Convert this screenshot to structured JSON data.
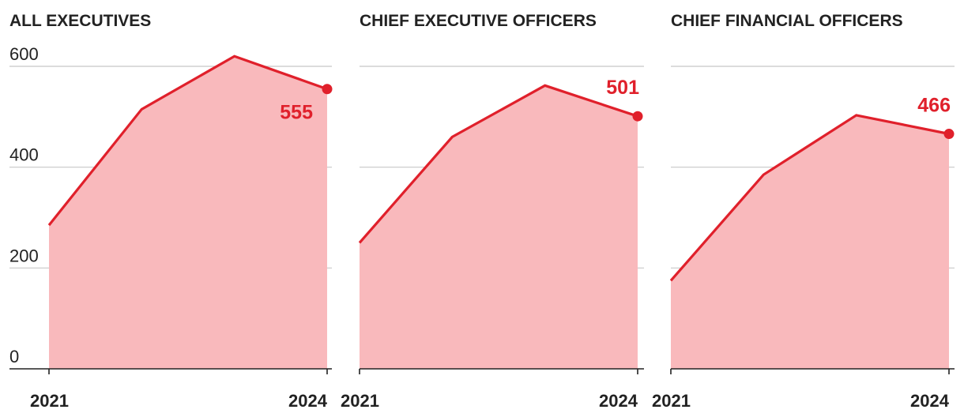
{
  "colors": {
    "line": "#e0202b",
    "area": "#f9b9bc",
    "grid": "#c8c8c8",
    "axis": "#222222",
    "text": "#222222"
  },
  "chart_data": [
    {
      "type": "area",
      "title": "ALL EXECUTIVES",
      "x": [
        2021,
        2022,
        2023,
        2024
      ],
      "values": [
        285,
        515,
        620,
        555
      ],
      "ylim": [
        0,
        600
      ],
      "yticks": [
        "0",
        "200",
        "400",
        "600"
      ],
      "xticks": [
        "2021",
        "2024"
      ],
      "end_label": "555",
      "grid": true
    },
    {
      "type": "area",
      "title": "CHIEF EXECUTIVE OFFICERS",
      "x": [
        2021,
        2022,
        2023,
        2024
      ],
      "values": [
        250,
        460,
        562,
        501
      ],
      "ylim": [
        0,
        600
      ],
      "yticks": [],
      "xticks": [
        "2021",
        "2024"
      ],
      "end_label": "501",
      "grid": true
    },
    {
      "type": "area",
      "title": "CHIEF FINANCIAL OFFICERS",
      "x": [
        2021,
        2022,
        2023,
        2024
      ],
      "values": [
        175,
        385,
        503,
        466
      ],
      "ylim": [
        0,
        600
      ],
      "yticks": [],
      "xticks": [
        "2021",
        "2024"
      ],
      "end_label": "466",
      "grid": true
    }
  ]
}
